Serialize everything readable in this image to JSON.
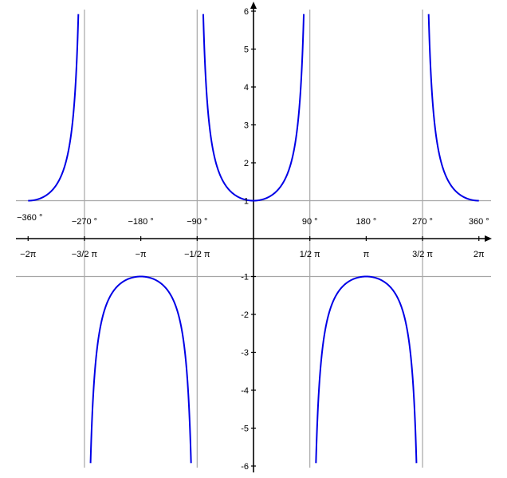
{
  "chart_data": {
    "type": "line",
    "title": "",
    "xlabel": "",
    "ylabel": "",
    "xlim": [
      -6.2832,
      6.2832
    ],
    "ylim": [
      -6,
      6
    ],
    "function": "sec(x)",
    "grid": false,
    "guide_lines": {
      "vertical_x": [
        -4.7124,
        -1.5708,
        1.5708,
        4.7124
      ],
      "horizontal_y": [
        1,
        -1
      ]
    },
    "y_ticks": [
      {
        "value": 6,
        "label": "6"
      },
      {
        "value": 5,
        "label": "5"
      },
      {
        "value": 4,
        "label": "4"
      },
      {
        "value": 3,
        "label": "3"
      },
      {
        "value": 2,
        "label": "2"
      },
      {
        "value": 1,
        "label": "1"
      },
      {
        "value": -1,
        "label": "-1"
      },
      {
        "value": -2,
        "label": "-2"
      },
      {
        "value": -3,
        "label": "-3"
      },
      {
        "value": -4,
        "label": "-4"
      },
      {
        "value": -5,
        "label": "-5"
      },
      {
        "value": -6,
        "label": "-6"
      }
    ],
    "x_ticks": [
      {
        "value": -6.2832,
        "radian_label": "−2π",
        "degree_label": "−360 °"
      },
      {
        "value": -4.7124,
        "radian_label": "−3/2 π",
        "degree_label": "−270 °"
      },
      {
        "value": -3.1416,
        "radian_label": "−π",
        "degree_label": "−180 °"
      },
      {
        "value": -1.5708,
        "radian_label": "−1/2 π",
        "degree_label": "−90 °"
      },
      {
        "value": 1.5708,
        "radian_label": "1/2 π",
        "degree_label": "90 °"
      },
      {
        "value": 3.1416,
        "radian_label": "π",
        "degree_label": "180 °"
      },
      {
        "value": 4.7124,
        "radian_label": "3/2 π",
        "degree_label": "270 °"
      },
      {
        "value": 6.2832,
        "radian_label": "2π",
        "degree_label": "360 °"
      }
    ],
    "series": [
      {
        "color": "#0000e6",
        "function": "sec(x)"
      }
    ]
  }
}
